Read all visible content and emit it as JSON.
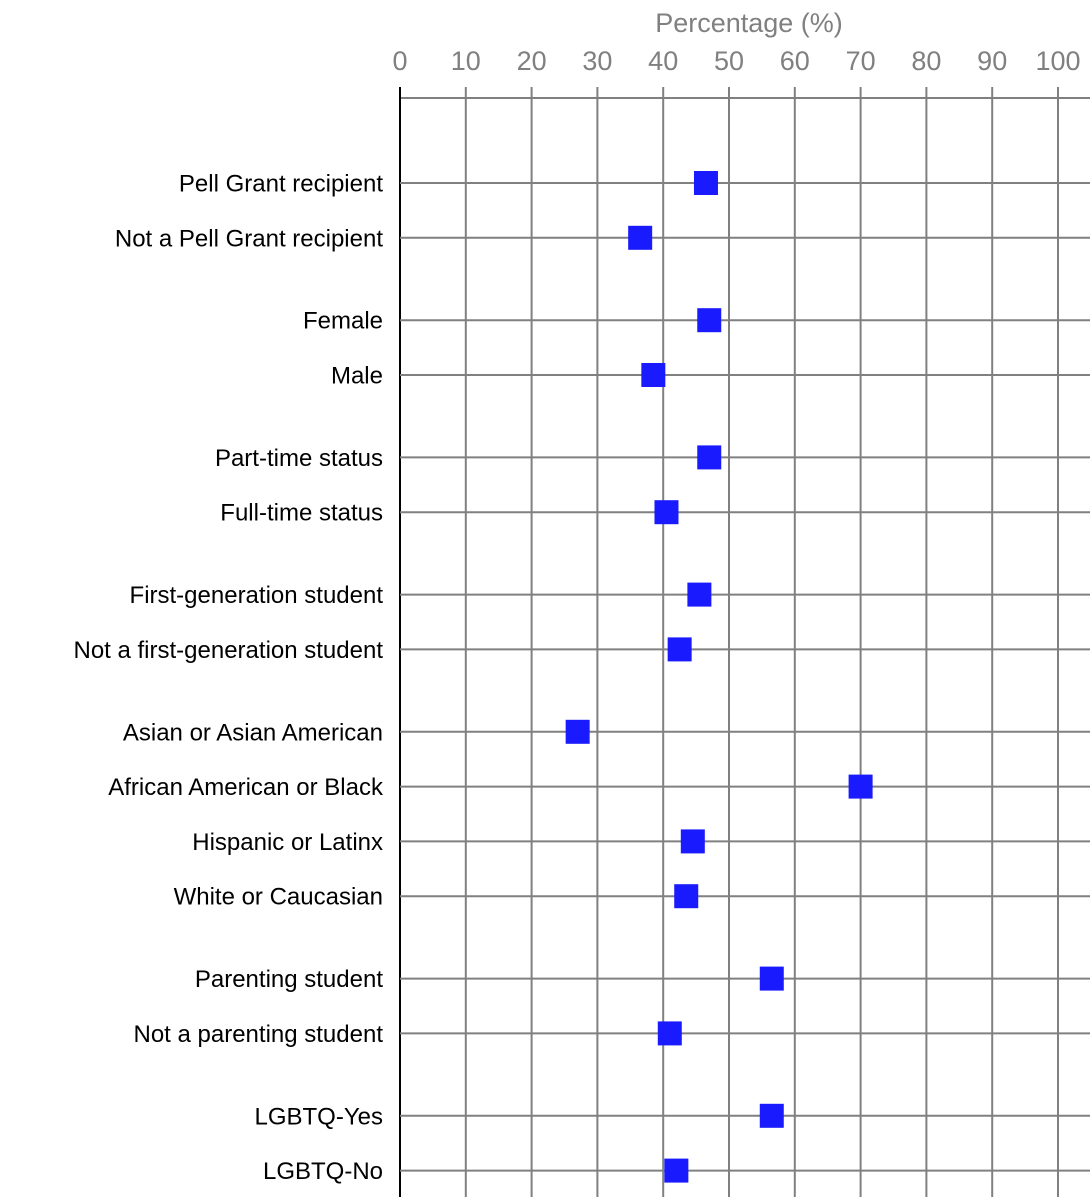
{
  "chart_data": {
    "type": "scatter",
    "title": "",
    "xlabel": "Percentage (%)",
    "ylabel": "",
    "xlim": [
      0,
      100
    ],
    "xticks": [
      "0",
      "10",
      "20",
      "30",
      "40",
      "50",
      "60",
      "70",
      "80",
      "90",
      "100"
    ],
    "grid": true,
    "marker": "square",
    "colors": {
      "marker": "#1a1aff",
      "grid": "#808080",
      "axis_text": "#808080",
      "label_text": "#000000"
    },
    "groups": [
      {
        "points": [
          {
            "label": "Pell Grant recipient",
            "value": 46.5
          },
          {
            "label": "Not a Pell Grant recipient",
            "value": 36.5
          }
        ]
      },
      {
        "points": [
          {
            "label": "Female",
            "value": 47
          },
          {
            "label": "Male",
            "value": 38.5
          }
        ]
      },
      {
        "points": [
          {
            "label": "Part-time status",
            "value": 47
          },
          {
            "label": "Full-time status",
            "value": 40.5
          }
        ]
      },
      {
        "points": [
          {
            "label": "First-generation student",
            "value": 45.5
          },
          {
            "label": "Not a first-generation student",
            "value": 42.5
          }
        ]
      },
      {
        "points": [
          {
            "label": "Asian or Asian American",
            "value": 27
          },
          {
            "label": "African American or Black",
            "value": 70
          },
          {
            "label": "Hispanic or Latinx",
            "value": 44.5
          },
          {
            "label": "White or Caucasian",
            "value": 43.5
          }
        ]
      },
      {
        "points": [
          {
            "label": "Parenting student",
            "value": 56.5
          },
          {
            "label": "Not a parenting student",
            "value": 41
          }
        ]
      },
      {
        "points": [
          {
            "label": "LGBTQ-Yes",
            "value": 56.5
          },
          {
            "label": "LGBTQ-No",
            "value": 42
          }
        ]
      }
    ]
  }
}
